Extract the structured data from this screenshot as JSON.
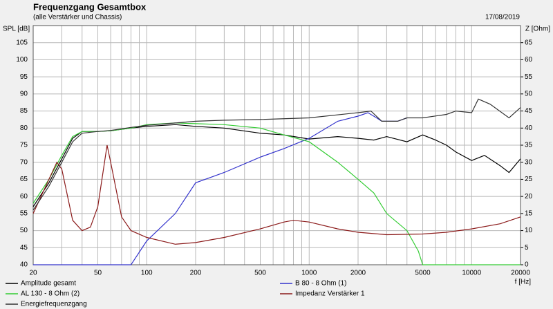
{
  "chart_data": {
    "type": "line",
    "title": "Frequenzgang Gesamtbox",
    "subtitle": "(alle Verstärker und Chassis)",
    "date": "17/08/2019",
    "ylabel": "SPL [dB]",
    "y2label": "Z [Ohm]",
    "xlabel": "f [Hz]",
    "xscale": "log",
    "grid": true,
    "xlim": [
      20,
      20000
    ],
    "xticks": [
      20,
      50,
      100,
      200,
      500,
      1000,
      2000,
      5000,
      10000,
      20000
    ],
    "x_minor_grid": [
      30,
      40,
      60,
      70,
      80,
      90,
      300,
      400,
      600,
      700,
      800,
      900,
      3000,
      4000,
      6000,
      7000,
      8000,
      9000
    ],
    "ylim": [
      40,
      110
    ],
    "yticks": [
      40,
      45,
      50,
      55,
      60,
      65,
      70,
      75,
      80,
      85,
      90,
      95,
      100,
      105
    ],
    "y2lim": [
      0,
      70
    ],
    "y2ticks": [
      0,
      5,
      10,
      15,
      20,
      25,
      30,
      35,
      40,
      45,
      50,
      55,
      60,
      65
    ],
    "series": [
      {
        "name": "Amplitude gesamt",
        "color": "#000000",
        "x": [
          20,
          25,
          30,
          35,
          40,
          50,
          60,
          80,
          100,
          150,
          200,
          300,
          500,
          700,
          1000,
          1500,
          2000,
          2500,
          3000,
          4000,
          5000,
          6000,
          7000,
          8000,
          10000,
          12000,
          15000,
          17000,
          20000
        ],
        "values": [
          57,
          64,
          71,
          77,
          79,
          79,
          79.2,
          80,
          80.5,
          81,
          80.5,
          80,
          78.5,
          78,
          76.8,
          77.5,
          77,
          76.5,
          77.5,
          76,
          78,
          76.5,
          75,
          73,
          70.5,
          72,
          69,
          67,
          71
        ]
      },
      {
        "name": "B 80 - 8 Ohm (1)",
        "color": "#3333cc",
        "x": [
          20,
          50,
          80,
          100,
          150,
          200,
          300,
          500,
          700,
          1000,
          1500,
          2000,
          2300,
          2600,
          2800,
          3500,
          4000
        ],
        "values": [
          40,
          40,
          40,
          47,
          55,
          64,
          67,
          71.5,
          74,
          77,
          82,
          83.5,
          84.5,
          83,
          82,
          82,
          83
        ]
      },
      {
        "name": "AL 130 - 8 Ohm (2)",
        "color": "#33cc33",
        "x": [
          20,
          25,
          30,
          35,
          40,
          50,
          60,
          80,
          100,
          150,
          200,
          300,
          500,
          700,
          1000,
          1500,
          2000,
          2500,
          3000,
          4000,
          4700,
          5000,
          10000,
          20000
        ],
        "values": [
          58,
          65,
          72,
          77.5,
          79,
          79,
          79.2,
          80,
          81,
          81.5,
          81.3,
          81,
          80,
          78,
          76,
          70,
          65,
          61,
          55,
          50,
          44,
          40,
          40,
          40
        ]
      },
      {
        "name": "Impedanz Verstärker 1",
        "color": "#8b1a1a",
        "axis": "y2",
        "x": [
          20,
          25,
          28,
          30,
          35,
          40,
          45,
          50,
          55,
          57,
          60,
          70,
          80,
          100,
          150,
          200,
          300,
          500,
          700,
          800,
          1000,
          1500,
          2000,
          3000,
          5000,
          7000,
          10000,
          15000,
          20000
        ],
        "values": [
          15,
          25,
          30,
          28,
          13,
          10,
          11,
          17,
          30,
          35,
          30,
          14,
          10,
          8,
          6,
          6.5,
          8,
          10.5,
          12.5,
          13,
          12.5,
          10.5,
          9.5,
          8.8,
          9,
          9.5,
          10.5,
          12,
          14
        ]
      },
      {
        "name": "Energiefrequenzgang",
        "color": "#333333",
        "x": [
          20,
          25,
          30,
          35,
          40,
          50,
          60,
          80,
          100,
          150,
          200,
          300,
          500,
          1000,
          2000,
          2400,
          2800,
          3500,
          4000,
          5000,
          7000,
          8000,
          10000,
          11000,
          13000,
          17000,
          20000
        ],
        "values": [
          56,
          63,
          70,
          76,
          78.5,
          79,
          79.3,
          80.2,
          80.8,
          81.5,
          82,
          82.3,
          82.5,
          83,
          84.5,
          85,
          82,
          82,
          83,
          83,
          84,
          85,
          84.5,
          88.5,
          87,
          83,
          86
        ]
      }
    ]
  }
}
